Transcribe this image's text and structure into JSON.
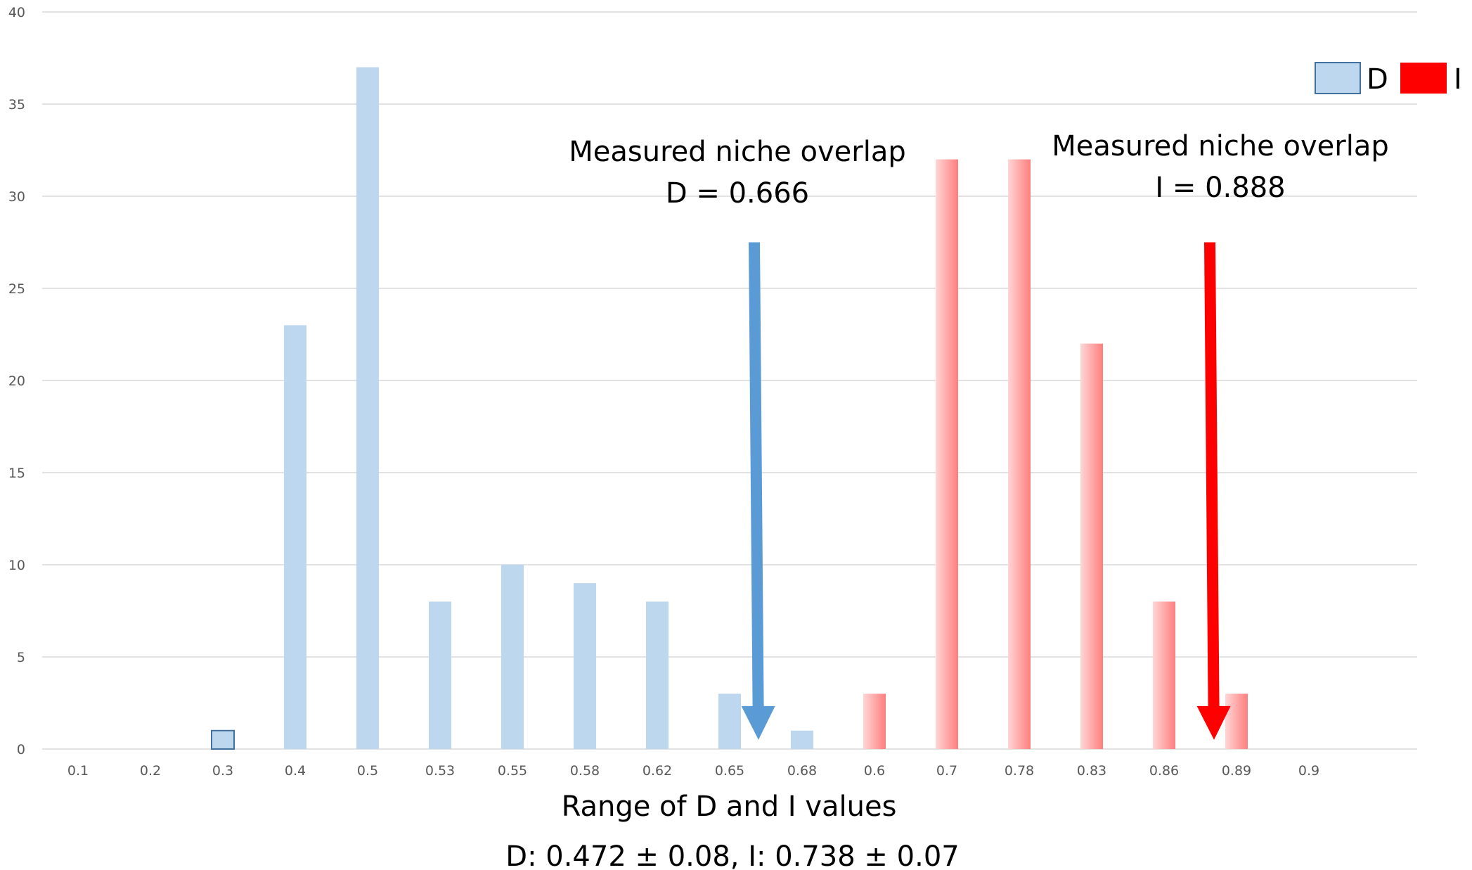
{
  "chart_data": {
    "type": "bar",
    "categories": [
      "0.1",
      "0.2",
      "0.3",
      "0.4",
      "0.5",
      "0.53",
      "0.55",
      "0.58",
      "0.62",
      "0.65",
      "0.68",
      "0.6",
      "0.7",
      "0.78",
      "0.83",
      "0.86",
      "0.89",
      "0.9"
    ],
    "series": [
      {
        "name": "D",
        "color": "#bdd7ee",
        "values": [
          0,
          0,
          1,
          23,
          37,
          8,
          10,
          9,
          8,
          3,
          1,
          0,
          0,
          0,
          0,
          0,
          0,
          0
        ]
      },
      {
        "name": "I",
        "color": "#ff0000",
        "values": [
          0,
          0,
          0,
          0,
          0,
          0,
          0,
          0,
          0,
          0,
          0,
          3,
          32,
          32,
          22,
          8,
          3,
          0
        ]
      }
    ],
    "y_ticks": [
      "0",
      "5",
      "10",
      "15",
      "20",
      "25",
      "30",
      "35",
      "40"
    ],
    "ylim": [
      0,
      40
    ],
    "grid": true,
    "legend_position": "top-right",
    "xlabel": "Range of D and I values",
    "subtitle": "D: 0.472 ± 0.08, I: 0.738 ± 0.07",
    "annotations": [
      {
        "id": "d",
        "line1": "Measured niche overlap",
        "line2": "D = 0.666",
        "color": "#5b9bd5",
        "y_top": 27.5,
        "y_bottom": 0.5
      },
      {
        "id": "i",
        "line1": "Measured niche overlap",
        "line2": "I = 0.888",
        "color": "#ff0000",
        "y_top": 27.5,
        "y_bottom": 0.5
      }
    ]
  }
}
